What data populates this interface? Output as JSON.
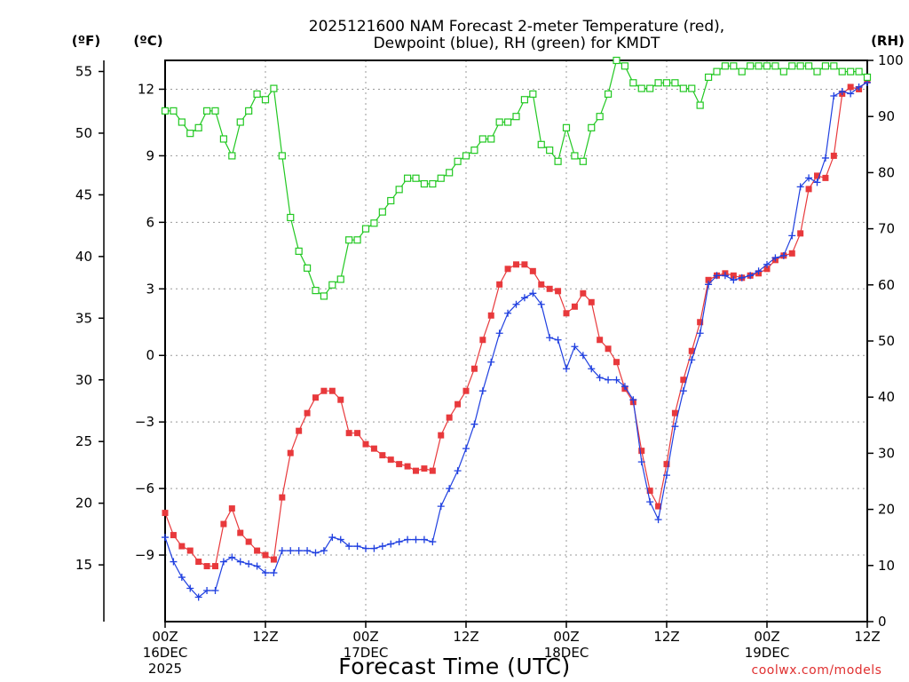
{
  "chart_data": {
    "type": "line",
    "title": [
      "2025121600 NAM Forecast 2-meter Temperature (red),",
      "Dewpoint (blue), RH (green) for KMDT"
    ],
    "xlabel": "Forecast Time (UTC)",
    "credit": "coolwx.com/models",
    "units": {
      "fahrenheit": "(ºF)",
      "celsius": "(ºC)",
      "rh": "(RH)"
    },
    "grid": true,
    "legend": "none",
    "x_unit": "forecast hour from 2025-12-16 00Z",
    "xlim": [
      0,
      84
    ],
    "x_ticks": [
      {
        "hour": 0,
        "label": [
          "00Z",
          "16DEC",
          "2025"
        ]
      },
      {
        "hour": 12,
        "label": [
          "12Z"
        ]
      },
      {
        "hour": 24,
        "label": [
          "00Z",
          "17DEC"
        ]
      },
      {
        "hour": 36,
        "label": [
          "12Z"
        ]
      },
      {
        "hour": 48,
        "label": [
          "00Z",
          "18DEC"
        ]
      },
      {
        "hour": 60,
        "label": [
          "12Z"
        ]
      },
      {
        "hour": 72,
        "label": [
          "00Z",
          "19DEC"
        ]
      },
      {
        "hour": 84,
        "label": [
          "12Z"
        ]
      }
    ],
    "y_celsius": {
      "range": [
        -12,
        13.3
      ],
      "ticks": [
        12,
        9,
        6,
        3,
        0,
        -3,
        -6,
        -9
      ],
      "tick_labels": [
        "12",
        "9",
        "6",
        "3",
        "0",
        "−3",
        "−6",
        "−9"
      ]
    },
    "y_fahrenheit": {
      "range": [
        10.4,
        55.9
      ],
      "ticks": [
        55,
        50,
        45,
        40,
        35,
        30,
        25,
        20,
        15
      ],
      "tick_labels": [
        "55",
        "50",
        "45",
        "40",
        "35",
        "30",
        "25",
        "20",
        "15"
      ]
    },
    "y_rh": {
      "range": [
        0,
        100
      ],
      "ticks": [
        100,
        90,
        80,
        70,
        60,
        50,
        40,
        30,
        20,
        10,
        0
      ],
      "tick_labels": [
        "100",
        "90",
        "80",
        "70",
        "60",
        "50",
        "40",
        "30",
        "20",
        "10",
        "0"
      ]
    },
    "series": [
      {
        "name": "Temperature",
        "axis": "celsius",
        "color": "#e8393c",
        "marker": "filled-square",
        "x": [
          0,
          1,
          2,
          3,
          4,
          5,
          6,
          7,
          8,
          9,
          10,
          11,
          12,
          13,
          14,
          15,
          16,
          17,
          18,
          19,
          20,
          21,
          22,
          23,
          24,
          25,
          26,
          27,
          28,
          29,
          30,
          31,
          32,
          33,
          34,
          35,
          36,
          37,
          38,
          39,
          40,
          41,
          42,
          43,
          44,
          45,
          46,
          47,
          48,
          49,
          50,
          51,
          52,
          53,
          54,
          55,
          56,
          57,
          58,
          59,
          60,
          61,
          62,
          63,
          64,
          65,
          66,
          67,
          68,
          69,
          70,
          71,
          72,
          73,
          74,
          75,
          76,
          77,
          78,
          79,
          80,
          81,
          82,
          83,
          84
        ],
        "values": [
          -7.1,
          -8.1,
          -8.6,
          -8.8,
          -9.3,
          -9.5,
          -9.5,
          -7.6,
          -6.9,
          -8.0,
          -8.4,
          -8.8,
          -9.0,
          -9.2,
          -6.4,
          -4.4,
          -3.4,
          -2.6,
          -1.9,
          -1.6,
          -1.6,
          -2.0,
          -3.5,
          -3.5,
          -4.0,
          -4.2,
          -4.5,
          -4.7,
          -4.9,
          -5.0,
          -5.2,
          -5.1,
          -5.2,
          -3.6,
          -2.8,
          -2.2,
          -1.6,
          -0.6,
          0.7,
          1.8,
          3.2,
          3.9,
          4.1,
          4.1,
          3.8,
          3.2,
          3.0,
          2.9,
          1.9,
          2.2,
          2.8,
          2.4,
          0.7,
          0.3,
          -0.3,
          -1.5,
          -2.1,
          -4.3,
          -6.1,
          -6.8,
          -4.9,
          -2.6,
          -1.1,
          0.2,
          1.5,
          3.4,
          3.6,
          3.7,
          3.6,
          3.5,
          3.6,
          3.7,
          3.9,
          4.3,
          4.5,
          4.6,
          5.5,
          7.5,
          8.1,
          8.0,
          9.0,
          11.8,
          12.1,
          12.0,
          12.4
        ]
      },
      {
        "name": "Dewpoint",
        "axis": "celsius",
        "color": "#2040e0",
        "marker": "plus",
        "x": [
          0,
          1,
          2,
          3,
          4,
          5,
          6,
          7,
          8,
          9,
          10,
          11,
          12,
          13,
          14,
          15,
          16,
          17,
          18,
          19,
          20,
          21,
          22,
          23,
          24,
          25,
          26,
          27,
          28,
          29,
          30,
          31,
          32,
          33,
          34,
          35,
          36,
          37,
          38,
          39,
          40,
          41,
          42,
          43,
          44,
          45,
          46,
          47,
          48,
          49,
          50,
          51,
          52,
          53,
          54,
          55,
          56,
          57,
          58,
          59,
          60,
          61,
          62,
          63,
          64,
          65,
          66,
          67,
          68,
          69,
          70,
          71,
          72,
          73,
          74,
          75,
          76,
          77,
          78,
          79,
          80,
          81,
          82,
          83,
          84
        ],
        "values": [
          -8.2,
          -9.3,
          -10.0,
          -10.5,
          -10.9,
          -10.6,
          -10.6,
          -9.3,
          -9.1,
          -9.3,
          -9.4,
          -9.5,
          -9.8,
          -9.8,
          -8.8,
          -8.8,
          -8.8,
          -8.8,
          -8.9,
          -8.8,
          -8.2,
          -8.3,
          -8.6,
          -8.6,
          -8.7,
          -8.7,
          -8.6,
          -8.5,
          -8.4,
          -8.3,
          -8.3,
          -8.3,
          -8.4,
          -6.8,
          -6.0,
          -5.2,
          -4.2,
          -3.1,
          -1.6,
          -0.3,
          1.0,
          1.9,
          2.3,
          2.6,
          2.8,
          2.3,
          0.8,
          0.7,
          -0.6,
          0.4,
          0.0,
          -0.6,
          -1.0,
          -1.1,
          -1.1,
          -1.4,
          -2.0,
          -4.8,
          -6.6,
          -7.4,
          -5.4,
          -3.2,
          -1.6,
          -0.2,
          1.0,
          3.2,
          3.6,
          3.6,
          3.4,
          3.5,
          3.6,
          3.8,
          4.1,
          4.4,
          4.5,
          5.4,
          7.6,
          8.0,
          7.8,
          8.9,
          11.7,
          11.9,
          11.8,
          12.1,
          12.3
        ]
      },
      {
        "name": "RH",
        "axis": "rh",
        "color": "#22c822",
        "marker": "open-square",
        "x": [
          0,
          1,
          2,
          3,
          4,
          5,
          6,
          7,
          8,
          9,
          10,
          11,
          12,
          13,
          14,
          15,
          16,
          17,
          18,
          19,
          20,
          21,
          22,
          23,
          24,
          25,
          26,
          27,
          28,
          29,
          30,
          31,
          32,
          33,
          34,
          35,
          36,
          37,
          38,
          39,
          40,
          41,
          42,
          43,
          44,
          45,
          46,
          47,
          48,
          49,
          50,
          51,
          52,
          53,
          54,
          55,
          56,
          57,
          58,
          59,
          60,
          61,
          62,
          63,
          64,
          65,
          66,
          67,
          68,
          69,
          70,
          71,
          72,
          73,
          74,
          75,
          76,
          77,
          78,
          79,
          80,
          81,
          82,
          83,
          84
        ],
        "values": [
          91,
          91,
          89,
          87,
          88,
          91,
          91,
          86,
          83,
          89,
          91,
          94,
          93,
          95,
          83,
          72,
          66,
          63,
          59,
          58,
          60,
          61,
          68,
          68,
          70,
          71,
          73,
          75,
          77,
          79,
          79,
          78,
          78,
          79,
          80,
          82,
          83,
          84,
          86,
          86,
          89,
          89,
          90,
          93,
          94,
          85,
          84,
          82,
          88,
          83,
          82,
          88,
          90,
          94,
          100,
          99,
          96,
          95,
          95,
          96,
          96,
          96,
          95,
          95,
          92,
          97,
          98,
          99,
          99,
          98,
          99,
          99,
          99,
          99,
          98,
          99,
          99,
          99,
          98,
          99,
          99,
          98,
          98,
          98,
          97
        ]
      }
    ]
  }
}
